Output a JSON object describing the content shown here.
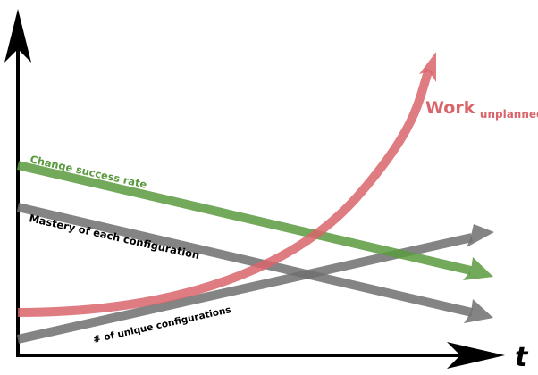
{
  "diagram": {
    "x_axis_label": "t",
    "series": {
      "change_success_rate": {
        "label": "Change success rate",
        "color": "#5a9a3e"
      },
      "mastery": {
        "label": "Mastery of each configuration",
        "color": "#6f6f6f"
      },
      "unique_configs": {
        "label": "# of unique configurations",
        "color": "#6f6f6f"
      },
      "work_unplanned": {
        "label_main": "Work",
        "label_sub": "unplanned",
        "color": "#d9656b"
      }
    },
    "text_color": "#000000",
    "axis_color": "#000000"
  }
}
